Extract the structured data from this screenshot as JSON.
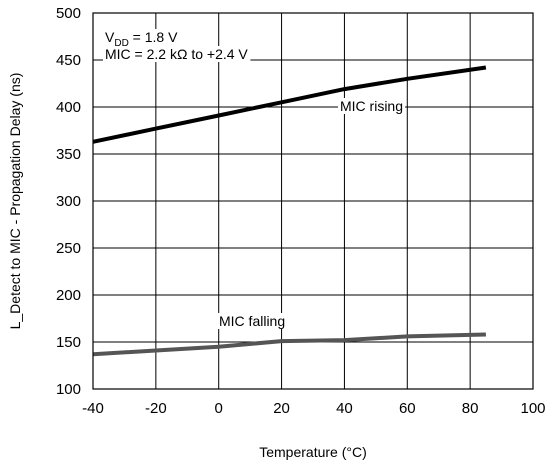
{
  "chart_data": {
    "type": "line",
    "xlabel": "Temperature (°C)",
    "ylabel": "L_Detect to MIC - Propagation Delay (ns)",
    "xlim": [
      -40,
      100
    ],
    "ylim": [
      100,
      500
    ],
    "x_ticks": [
      "-40",
      "-20",
      "0",
      "20",
      "40",
      "60",
      "80",
      "100"
    ],
    "y_ticks": [
      "100",
      "150",
      "200",
      "250",
      "300",
      "350",
      "400",
      "450",
      "500"
    ],
    "grid": true,
    "annotations": {
      "vdd_prefix": "V",
      "vdd_sub": "DD",
      "vdd_value": " = 1.8 V",
      "mic": "MIC = 2.2 kΩ to +2.4 V"
    },
    "series": [
      {
        "name": "MIC rising",
        "color": "#000000",
        "x": [
          -40,
          -20,
          0,
          20,
          40,
          60,
          85
        ],
        "y": [
          363,
          377,
          391,
          405,
          419,
          430,
          442
        ]
      },
      {
        "name": "MIC falling",
        "color": "#555555",
        "x": [
          -40,
          -20,
          0,
          20,
          40,
          60,
          85
        ],
        "y": [
          137,
          141,
          145,
          151,
          152,
          156,
          158
        ]
      }
    ]
  }
}
